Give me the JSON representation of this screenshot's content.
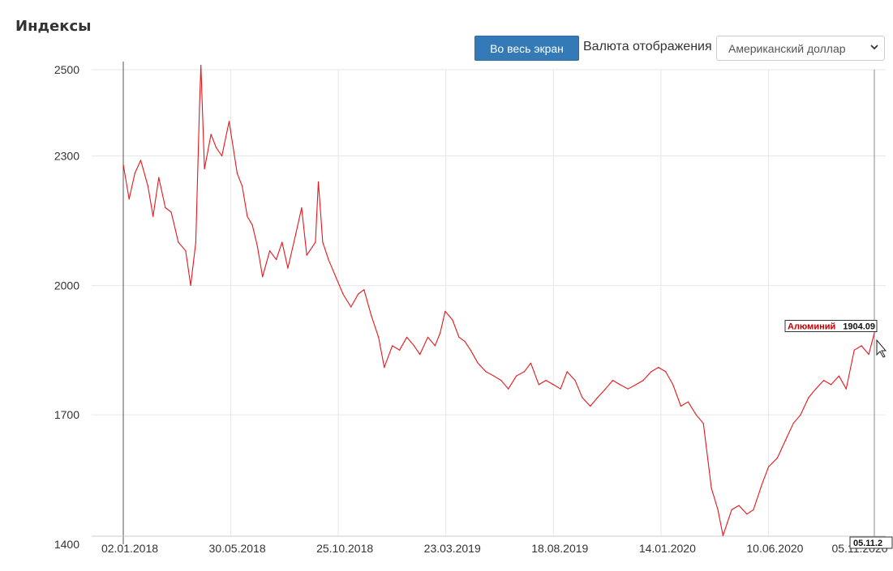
{
  "page": {
    "title": "Индексы"
  },
  "toolbar": {
    "fullscreen_label": "Во весь экран",
    "currency_label": "Валюта отображения",
    "currency_selected": "Американский доллар"
  },
  "colors": {
    "line": "#e8151b",
    "button": "#337ab7",
    "grid": "#e6e6e6",
    "tooltip_name": "#c00000"
  },
  "tooltip": {
    "name": "Алюминий",
    "value": "1904.09",
    "date": "05.11.2"
  },
  "chart_data": {
    "type": "line",
    "title": "",
    "xlabel": "",
    "ylabel": "",
    "x_start": "2018-01-02",
    "x_end": "2020-11-05",
    "x_ticks": [
      "02.01.2018",
      "30.05.2018",
      "25.10.2018",
      "23.03.2019",
      "18.08.2019",
      "14.01.2020",
      "10.06.2020",
      "05.11.2020"
    ],
    "y_ticks": [
      1400,
      1700,
      2000,
      2300,
      2500
    ],
    "ylim": [
      1400,
      2500
    ],
    "grid": true,
    "series": [
      {
        "color": "#e8151b",
        "points": [
          [
            "2018-01-02",
            2280
          ],
          [
            "2018-01-10",
            2200
          ],
          [
            "2018-01-18",
            2260
          ],
          [
            "2018-01-26",
            2290
          ],
          [
            "2018-02-05",
            2230
          ],
          [
            "2018-02-12",
            2160
          ],
          [
            "2018-02-20",
            2250
          ],
          [
            "2018-03-01",
            2180
          ],
          [
            "2018-03-09",
            2170
          ],
          [
            "2018-03-19",
            2100
          ],
          [
            "2018-03-29",
            2080
          ],
          [
            "2018-04-05",
            2000
          ],
          [
            "2018-04-12",
            2100
          ],
          [
            "2018-04-17",
            2410
          ],
          [
            "2018-04-19",
            2510
          ],
          [
            "2018-04-24",
            2270
          ],
          [
            "2018-05-03",
            2350
          ],
          [
            "2018-05-10",
            2320
          ],
          [
            "2018-05-18",
            2300
          ],
          [
            "2018-05-28",
            2380
          ],
          [
            "2018-06-08",
            2260
          ],
          [
            "2018-06-15",
            2230
          ],
          [
            "2018-06-22",
            2160
          ],
          [
            "2018-06-29",
            2140
          ],
          [
            "2018-07-06",
            2090
          ],
          [
            "2018-07-13",
            2020
          ],
          [
            "2018-07-23",
            2080
          ],
          [
            "2018-08-01",
            2060
          ],
          [
            "2018-08-09",
            2100
          ],
          [
            "2018-08-17",
            2040
          ],
          [
            "2018-08-28",
            2120
          ],
          [
            "2018-09-05",
            2180
          ],
          [
            "2018-09-12",
            2070
          ],
          [
            "2018-09-24",
            2100
          ],
          [
            "2018-09-28",
            2240
          ],
          [
            "2018-10-04",
            2100
          ],
          [
            "2018-10-12",
            2060
          ],
          [
            "2018-10-22",
            2020
          ],
          [
            "2018-11-01",
            1980
          ],
          [
            "2018-11-12",
            1950
          ],
          [
            "2018-11-22",
            1980
          ],
          [
            "2018-11-30",
            1990
          ],
          [
            "2018-12-10",
            1930
          ],
          [
            "2018-12-20",
            1880
          ],
          [
            "2018-12-28",
            1810
          ],
          [
            "2019-01-08",
            1860
          ],
          [
            "2019-01-18",
            1850
          ],
          [
            "2019-01-28",
            1880
          ],
          [
            "2019-02-07",
            1860
          ],
          [
            "2019-02-15",
            1840
          ],
          [
            "2019-02-26",
            1880
          ],
          [
            "2019-03-08",
            1860
          ],
          [
            "2019-03-15",
            1890
          ],
          [
            "2019-03-22",
            1940
          ],
          [
            "2019-04-01",
            1920
          ],
          [
            "2019-04-10",
            1880
          ],
          [
            "2019-04-18",
            1870
          ],
          [
            "2019-04-26",
            1850
          ],
          [
            "2019-05-06",
            1820
          ],
          [
            "2019-05-17",
            1800
          ],
          [
            "2019-05-28",
            1790
          ],
          [
            "2019-06-07",
            1780
          ],
          [
            "2019-06-17",
            1760
          ],
          [
            "2019-06-28",
            1790
          ],
          [
            "2019-07-09",
            1800
          ],
          [
            "2019-07-18",
            1820
          ],
          [
            "2019-07-29",
            1770
          ],
          [
            "2019-08-08",
            1780
          ],
          [
            "2019-08-18",
            1770
          ],
          [
            "2019-08-28",
            1760
          ],
          [
            "2019-09-06",
            1800
          ],
          [
            "2019-09-17",
            1780
          ],
          [
            "2019-09-27",
            1740
          ],
          [
            "2019-10-08",
            1720
          ],
          [
            "2019-10-18",
            1740
          ],
          [
            "2019-10-29",
            1760
          ],
          [
            "2019-11-08",
            1780
          ],
          [
            "2019-11-18",
            1770
          ],
          [
            "2019-11-29",
            1760
          ],
          [
            "2019-12-10",
            1770
          ],
          [
            "2019-12-20",
            1780
          ],
          [
            "2019-12-31",
            1800
          ],
          [
            "2020-01-10",
            1810
          ],
          [
            "2020-01-20",
            1800
          ],
          [
            "2020-01-30",
            1770
          ],
          [
            "2020-02-10",
            1720
          ],
          [
            "2020-02-20",
            1730
          ],
          [
            "2020-03-02",
            1700
          ],
          [
            "2020-03-12",
            1680
          ],
          [
            "2020-03-23",
            1530
          ],
          [
            "2020-04-01",
            1480
          ],
          [
            "2020-04-08",
            1420
          ],
          [
            "2020-04-20",
            1480
          ],
          [
            "2020-04-30",
            1490
          ],
          [
            "2020-05-11",
            1470
          ],
          [
            "2020-05-20",
            1480
          ],
          [
            "2020-06-01",
            1540
          ],
          [
            "2020-06-10",
            1580
          ],
          [
            "2020-06-22",
            1600
          ],
          [
            "2020-07-03",
            1640
          ],
          [
            "2020-07-14",
            1680
          ],
          [
            "2020-07-24",
            1700
          ],
          [
            "2020-08-04",
            1740
          ],
          [
            "2020-08-14",
            1760
          ],
          [
            "2020-08-25",
            1780
          ],
          [
            "2020-09-04",
            1770
          ],
          [
            "2020-09-15",
            1790
          ],
          [
            "2020-09-25",
            1760
          ],
          [
            "2020-10-06",
            1850
          ],
          [
            "2020-10-16",
            1860
          ],
          [
            "2020-10-26",
            1840
          ],
          [
            "2020-11-05",
            1904
          ]
        ]
      }
    ]
  }
}
